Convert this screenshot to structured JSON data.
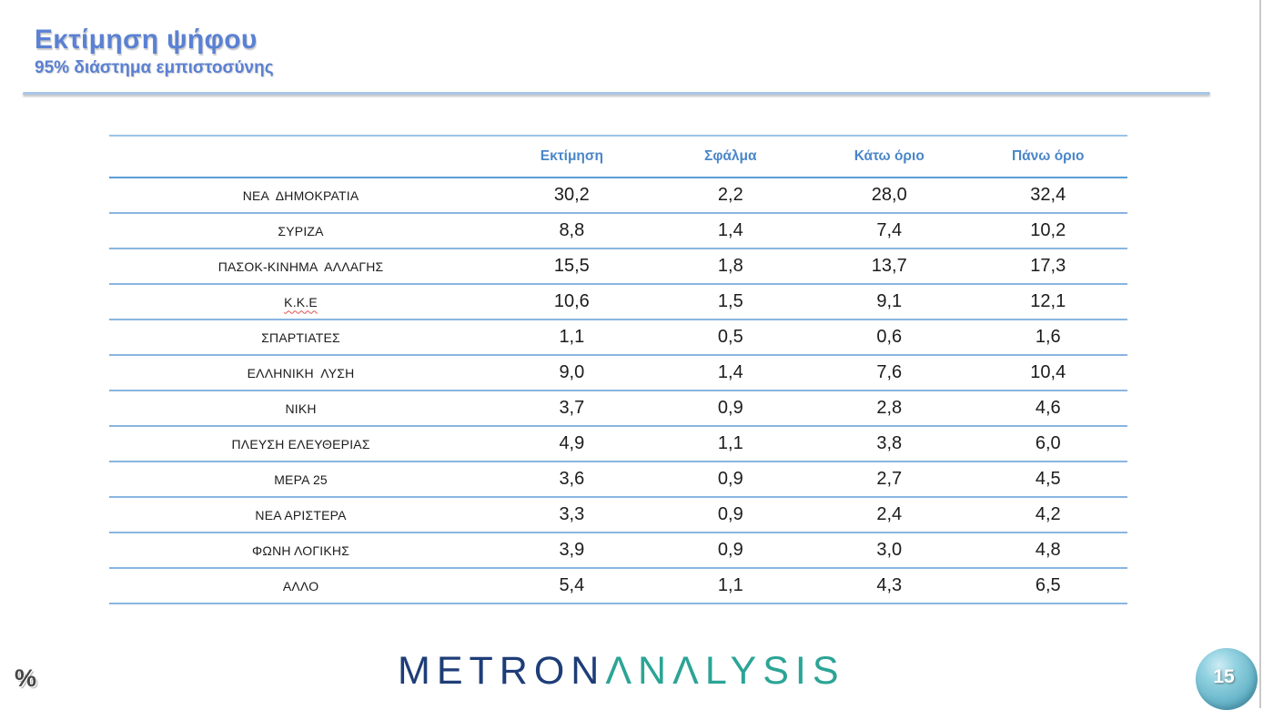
{
  "header": {
    "title": "Εκτίμηση ψήφου",
    "subtitle": "95% διάστημα εμπιστοσύνης"
  },
  "table": {
    "columns": [
      "Εκτίμηση",
      "Σφάλμα",
      "Κάτω όριο",
      "Πάνω όριο"
    ],
    "rows": [
      {
        "party": "ΝΕΑ  ΔΗΜΟΚΡΑΤΙΑ",
        "estimate": "30,2",
        "error": "2,2",
        "lower": "28,0",
        "upper": "32,4"
      },
      {
        "party": "ΣΥΡΙΖΑ",
        "estimate": "8,8",
        "error": "1,4",
        "lower": "7,4",
        "upper": "10,2"
      },
      {
        "party": "ΠΑΣΟΚ-ΚΙΝΗΜΑ  ΑΛΛΑΓΗΣ",
        "estimate": "15,5",
        "error": "1,8",
        "lower": "13,7",
        "upper": "17,3"
      },
      {
        "party": "Κ.Κ.Ε",
        "estimate": "10,6",
        "error": "1,5",
        "lower": "9,1",
        "upper": "12,1"
      },
      {
        "party": "ΣΠΑΡΤΙΑΤΕΣ",
        "estimate": "1,1",
        "error": "0,5",
        "lower": "0,6",
        "upper": "1,6"
      },
      {
        "party": "ΕΛΛΗΝΙΚΗ  ΛΥΣΗ",
        "estimate": "9,0",
        "error": "1,4",
        "lower": "7,6",
        "upper": "10,4"
      },
      {
        "party": "ΝΙΚΗ",
        "estimate": "3,7",
        "error": "0,9",
        "lower": "2,8",
        "upper": "4,6"
      },
      {
        "party": "ΠΛΕΥΣΗ ΕΛΕΥΘΕΡΙΑΣ",
        "estimate": "4,9",
        "error": "1,1",
        "lower": "3,8",
        "upper": "6,0"
      },
      {
        "party": "ΜΕΡΑ 25",
        "estimate": "3,6",
        "error": "0,9",
        "lower": "2,7",
        "upper": "4,5"
      },
      {
        "party": "ΝΕΑ ΑΡΙΣΤΕΡΑ",
        "estimate": "3,3",
        "error": "0,9",
        "lower": "2,4",
        "upper": "4,2"
      },
      {
        "party": "ΦΩΝΗ ΛΟΓΙΚΗΣ",
        "estimate": "3,9",
        "error": "0,9",
        "lower": "3,0",
        "upper": "4,8"
      },
      {
        "party": "ΑΛΛΟ",
        "estimate": "5,4",
        "error": "1,1",
        "lower": "4,3",
        "upper": "6,5"
      }
    ]
  },
  "footer": {
    "percent_label": "%",
    "logo_metron": "METRON",
    "logo_analysis": "ΛNΛLYSIS",
    "page_number": "15"
  },
  "colors": {
    "title_blue": "#5b81d3",
    "column_header_blue": "#4a86c9",
    "table_line_blue": "#89b5e1",
    "header_line_blue": "#5b9bd5",
    "logo_navy": "#1e3d78",
    "logo_teal": "#2ba496",
    "badge_blue": "#6fbacd",
    "spellcheck_red": "#e0524a"
  }
}
